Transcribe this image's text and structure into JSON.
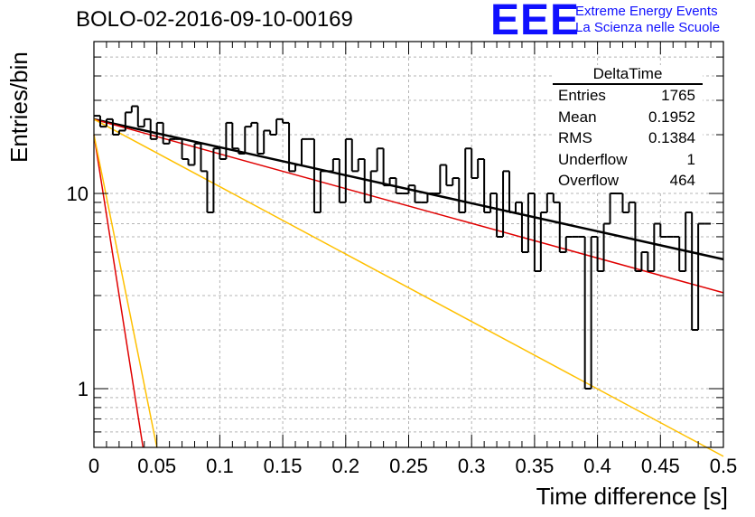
{
  "title": "BOLO-02-2016-09-10-00169",
  "logo": {
    "mark": "EEE",
    "line1": "Extreme Energy Events",
    "line2": "La Scienza nelle Scuole",
    "color": "#1010ff"
  },
  "stats_box": {
    "title": "DeltaTime",
    "rows": [
      {
        "label": "Entries",
        "value": "1765"
      },
      {
        "label": "Mean",
        "value": "0.1952"
      },
      {
        "label": "RMS",
        "value": "0.1384"
      },
      {
        "label": "Underflow",
        "value": "1"
      },
      {
        "label": "Overflow",
        "value": "464"
      }
    ]
  },
  "chart_data": {
    "type": "line",
    "xlabel": "Time difference [s]",
    "ylabel": "Entries/bin",
    "xlim": [
      0,
      0.5
    ],
    "ylim": [
      0.5,
      60
    ],
    "yscale": "log",
    "grid": true,
    "x_ticks": [
      "0",
      "0.05",
      "0.1",
      "0.15",
      "0.2",
      "0.25",
      "0.3",
      "0.35",
      "0.4",
      "0.45",
      "0.5"
    ],
    "y_ticks": [
      "1",
      "10"
    ],
    "histogram": {
      "bin_width": 0.005,
      "x_start": 0,
      "values": [
        25,
        22,
        24,
        20,
        21,
        26,
        28,
        22,
        24,
        19,
        23,
        18,
        19,
        19,
        15,
        14,
        18,
        13,
        8,
        17,
        15,
        23,
        17,
        16,
        22,
        23,
        16,
        21,
        20,
        24,
        23,
        13,
        14,
        19,
        19,
        8,
        13,
        13,
        15,
        9,
        19,
        13,
        15,
        9,
        13,
        17,
        11,
        12,
        10,
        10,
        11,
        9,
        9,
        10,
        10,
        14,
        11,
        12,
        8,
        17,
        12,
        15,
        8,
        10,
        6,
        13,
        8,
        9,
        5,
        10,
        4,
        8,
        10,
        9,
        5,
        6,
        6,
        6,
        1,
        6,
        4,
        7,
        10,
        10,
        8,
        9,
        4,
        5,
        4,
        7,
        6,
        6,
        6,
        4,
        8,
        2,
        7,
        7
      ],
      "color": "#000000"
    },
    "fits": [
      {
        "x": [
          0.0,
          0.5
        ],
        "y": [
          24,
          4.6
        ],
        "color": "#000000",
        "width": 2.5
      },
      {
        "x": [
          0.0,
          0.5
        ],
        "y": [
          24,
          3.1
        ],
        "color": "#e00000",
        "width": 1.5
      },
      {
        "x": [
          0.0,
          0.5
        ],
        "y": [
          24,
          0.45
        ],
        "color": "#ffc000",
        "width": 1.5
      },
      {
        "x": [
          0.0,
          0.039
        ],
        "y": [
          20,
          0.5
        ],
        "color": "#e00000",
        "width": 1.5
      },
      {
        "x": [
          0.0,
          0.05
        ],
        "y": [
          20,
          0.5
        ],
        "color": "#ffc000",
        "width": 1.5
      }
    ]
  }
}
